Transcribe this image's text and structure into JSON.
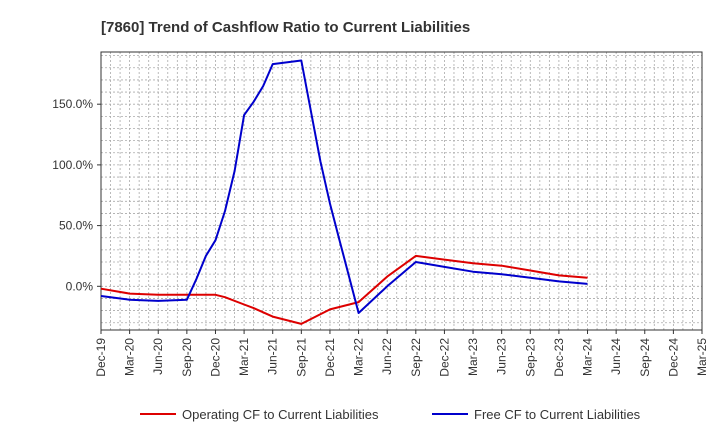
{
  "chart_data": {
    "type": "line",
    "title": "[7860]  Trend of Cashflow Ratio to Current Liabilities",
    "xlabel": "",
    "ylabel": "",
    "x_ticks": [
      "Dec-19",
      "Mar-20",
      "Jun-20",
      "Sep-20",
      "Dec-20",
      "Mar-21",
      "Jun-21",
      "Sep-21",
      "Dec-21",
      "Mar-22",
      "Jun-22",
      "Sep-22",
      "Dec-22",
      "Mar-23",
      "Jun-23",
      "Sep-23",
      "Dec-23",
      "Mar-24",
      "Jun-24",
      "Sep-24",
      "Dec-24",
      "Mar-25"
    ],
    "y_ticks": [
      0,
      50,
      100,
      150
    ],
    "y_tick_labels": [
      "0.0%",
      "50.0%",
      "100.0%",
      "150.0%"
    ],
    "ylim": [
      -36,
      193
    ],
    "grid": true,
    "legend_position": "bottom",
    "series": [
      {
        "name": "Operating CF to Current Liabilities",
        "color": "#dd0000",
        "points": [
          [
            "Dec-19",
            -2
          ],
          [
            "Mar-20",
            -6
          ],
          [
            "Jun-20",
            -7
          ],
          [
            "Sep-20",
            -7
          ],
          [
            "Dec-20",
            -7
          ],
          [
            "Jan-21",
            -9
          ],
          [
            "Mar-21",
            -15
          ],
          [
            "Apr-21",
            -18
          ],
          [
            "Jun-21",
            -25
          ],
          [
            "Sep-21",
            -31
          ],
          [
            "Dec-21",
            -19
          ],
          [
            "Mar-22",
            -13
          ],
          [
            "Jun-22",
            8
          ],
          [
            "Sep-22",
            25
          ],
          [
            "Dec-22",
            22
          ],
          [
            "Mar-23",
            19
          ],
          [
            "Jun-23",
            17
          ],
          [
            "Sep-23",
            13
          ],
          [
            "Dec-23",
            9
          ],
          [
            "Mar-24",
            7
          ]
        ]
      },
      {
        "name": "Free CF to Current Liabilities",
        "color": "#0000cc",
        "points": [
          [
            "Dec-19",
            -8
          ],
          [
            "Mar-20",
            -11
          ],
          [
            "Jun-20",
            -12
          ],
          [
            "Sep-20",
            -11
          ],
          [
            "Oct-20",
            6
          ],
          [
            "Nov-20",
            25
          ],
          [
            "Dec-20",
            38
          ],
          [
            "Jan-21",
            62
          ],
          [
            "Feb-21",
            95
          ],
          [
            "Mar-21",
            141
          ],
          [
            "Apr-21",
            152
          ],
          [
            "May-21",
            165
          ],
          [
            "Jun-21",
            183
          ],
          [
            "Sep-21",
            186
          ],
          [
            "Nov-21",
            103
          ],
          [
            "Dec-21",
            68
          ],
          [
            "Jan-22",
            38
          ],
          [
            "Mar-22",
            -22
          ],
          [
            "Jun-22",
            0
          ],
          [
            "Sep-22",
            20
          ],
          [
            "Dec-22",
            16
          ],
          [
            "Mar-23",
            12
          ],
          [
            "Jun-23",
            10
          ],
          [
            "Sep-23",
            7
          ],
          [
            "Dec-23",
            4
          ],
          [
            "Mar-24",
            2
          ]
        ]
      }
    ]
  }
}
